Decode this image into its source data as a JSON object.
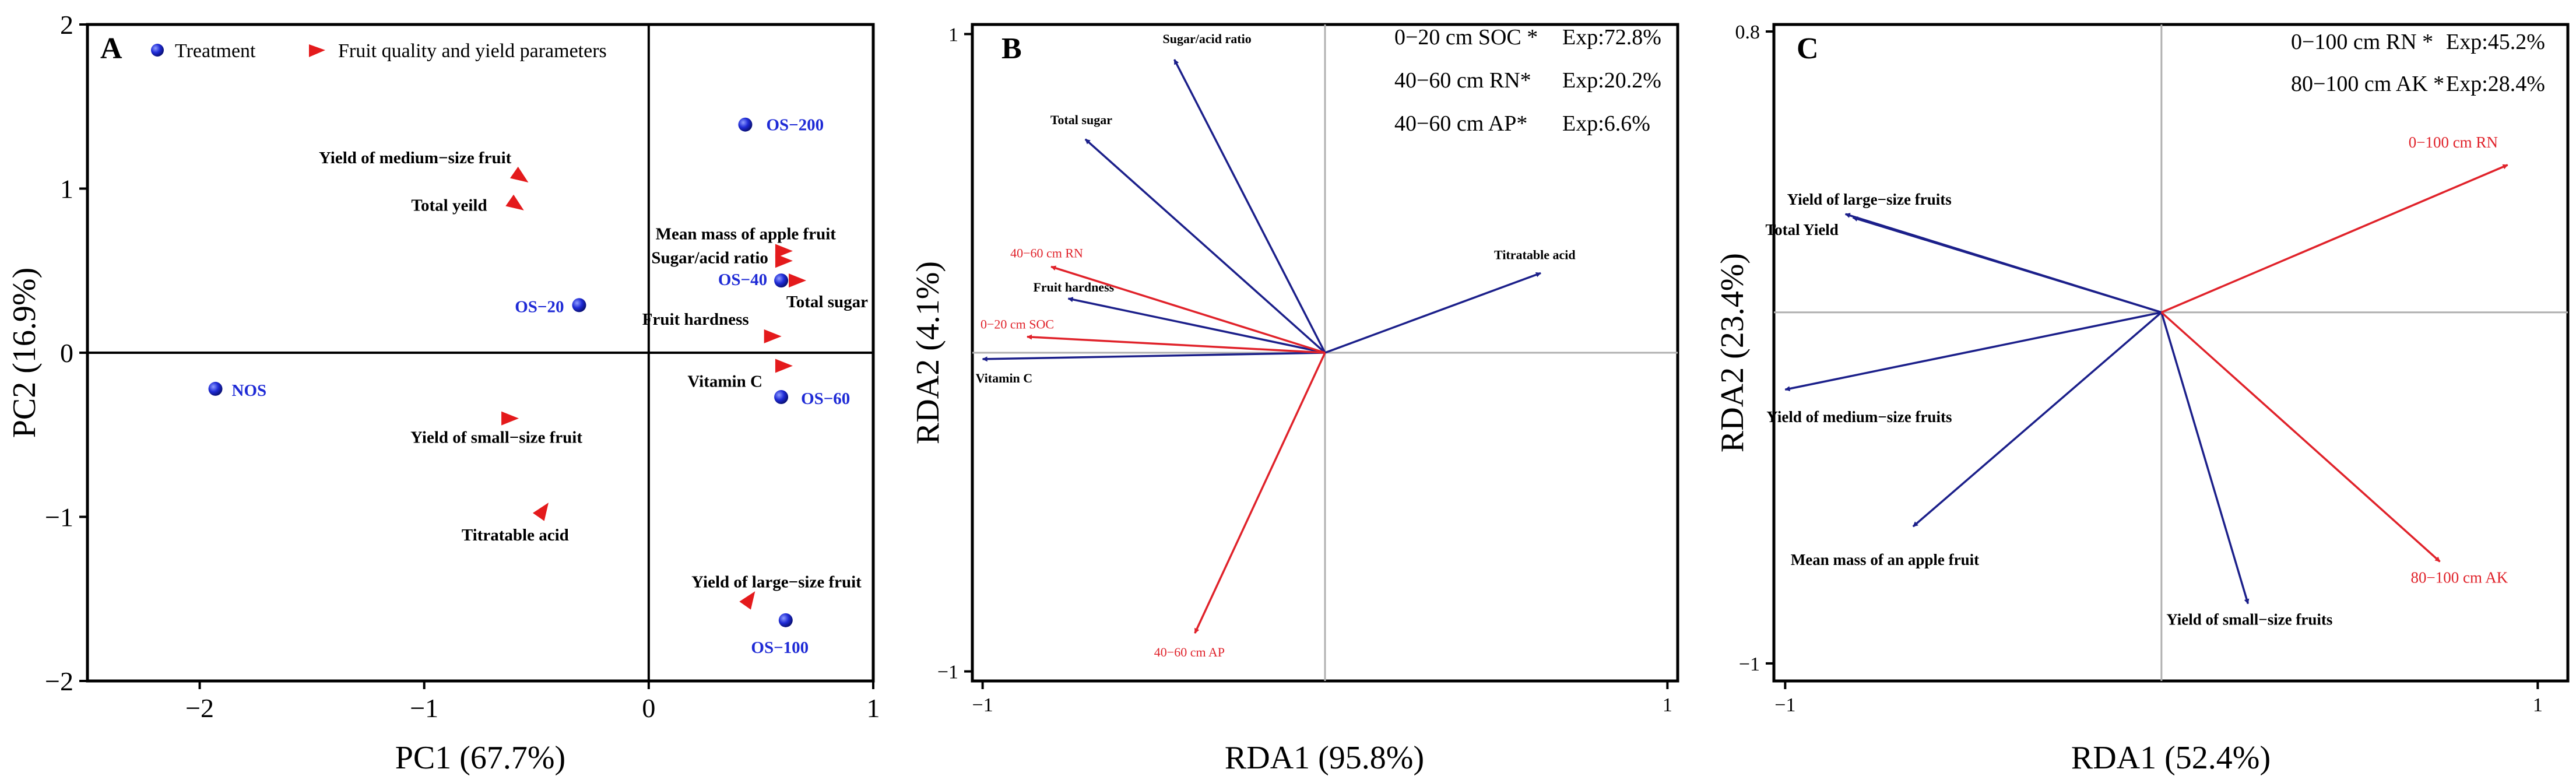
{
  "colors": {
    "treatment": "#1f2bd6",
    "fruit_param": "#e41a1c",
    "env_arrow": "#e0222a",
    "response_arrow": "#1b1f8a"
  },
  "chart_data": [
    {
      "panel": "A",
      "type": "scatter",
      "xlabel": "PC1 (67.7%)",
      "ylabel": "PC2 (16.9%)",
      "xlim": [
        -2.5,
        1
      ],
      "ylim": [
        -2,
        2
      ],
      "xticks": [
        -2,
        -1,
        0,
        1
      ],
      "yticks": [
        -2,
        -1,
        0,
        1,
        2
      ],
      "legend": [
        {
          "label": "Treatment",
          "marker": "circle"
        },
        {
          "label": "Fruit quality and yield parameters",
          "marker": "flag"
        }
      ],
      "treatments": [
        {
          "label": "NOS",
          "x": -1.93,
          "y": -0.22
        },
        {
          "label": "OS−20",
          "x": -0.31,
          "y": 0.29
        },
        {
          "label": "OS−40",
          "x": 0.59,
          "y": 0.44
        },
        {
          "label": "OS−60",
          "x": 0.59,
          "y": -0.27
        },
        {
          "label": "OS−100",
          "x": 0.61,
          "y": -1.63
        },
        {
          "label": "OS−200",
          "x": 0.43,
          "y": 1.39
        }
      ],
      "parameters": [
        {
          "label": "Yield of medium−size fruit",
          "x": -0.57,
          "y": 1.07
        },
        {
          "label": "Total yeild",
          "x": -0.59,
          "y": 0.9
        },
        {
          "label": "Mean mass of apple fruit",
          "x": 0.6,
          "y": 0.62
        },
        {
          "label": "Sugar/acid ratio",
          "x": 0.6,
          "y": 0.56
        },
        {
          "label": "Total sugar",
          "x": 0.66,
          "y": 0.44
        },
        {
          "label": "Fruit hardness",
          "x": 0.55,
          "y": 0.1
        },
        {
          "label": "Vitamin C",
          "x": 0.6,
          "y": -0.08
        },
        {
          "label": "Yield of small−size fruit",
          "x": -0.62,
          "y": -0.4
        },
        {
          "label": "Titratable acid",
          "x": -0.47,
          "y": -0.96
        },
        {
          "label": "Yield of large−size fruit",
          "x": 0.45,
          "y": -1.5
        }
      ]
    },
    {
      "panel": "B",
      "type": "scatter",
      "xlabel": "RDA1 (95.8%)",
      "ylabel": "RDA2 (4.1%)",
      "xlim": [
        -1.03,
        1.03
      ],
      "ylim": [
        -1.03,
        1.03
      ],
      "xticks": [
        -1,
        1
      ],
      "yticks": [
        -1,
        1
      ],
      "explained": [
        {
          "variable": "0−20 cm SOC *",
          "exp": "Exp:72.8%"
        },
        {
          "variable": "40−60 cm RN*",
          "exp": "Exp:20.2%"
        },
        {
          "variable": "40−60 cm AP*",
          "exp": "Exp:6.6%"
        }
      ],
      "response_arrows": [
        {
          "label": "Sugar/acid ratio",
          "x": -0.44,
          "y": 0.92
        },
        {
          "label": "Total sugar",
          "x": -0.7,
          "y": 0.67
        },
        {
          "label": "Fruit hardness",
          "x": -0.75,
          "y": 0.17
        },
        {
          "label": "Vitamin C",
          "x": -1.0,
          "y": -0.02
        },
        {
          "label": "Titratable acid",
          "x": 0.63,
          "y": 0.25
        }
      ],
      "env_arrows": [
        {
          "label": "40−60 cm RN",
          "x": -0.8,
          "y": 0.27
        },
        {
          "label": "0−20 cm SOC",
          "x": -0.87,
          "y": 0.05
        },
        {
          "label": "40−60 cm AP",
          "x": -0.38,
          "y": -0.88
        }
      ]
    },
    {
      "panel": "C",
      "type": "scatter",
      "xlabel": "RDA1 (52.4%)",
      "ylabel": "RDA2 (23.4%)",
      "xlim": [
        -1.03,
        1.08
      ],
      "ylim": [
        -1.05,
        0.82
      ],
      "xticks": [
        -1,
        1
      ],
      "yticks": [
        -1,
        0.8
      ],
      "explained": [
        {
          "variable": "0−100 cm RN *",
          "exp": "Exp:45.2%"
        },
        {
          "variable": "80−100 cm AK * ",
          "exp": "Exp:28.4%"
        }
      ],
      "response_arrows": [
        {
          "label": "Yield of large−size fruits",
          "x": -0.84,
          "y": 0.28
        },
        {
          "label": "Total Yield",
          "x": -0.82,
          "y": 0.27
        },
        {
          "label": "Yield of medium−size fruits",
          "x": -1.0,
          "y": -0.22
        },
        {
          "label": "Mean mass of an apple fruit",
          "x": -0.66,
          "y": -0.61
        },
        {
          "label": "Yield of small−size fruits",
          "x": 0.23,
          "y": -0.83
        }
      ],
      "env_arrows": [
        {
          "label": "0−100 cm RN",
          "x": 0.92,
          "y": 0.42
        },
        {
          "label": "80−100 cm AK",
          "x": 0.74,
          "y": -0.71
        }
      ]
    }
  ]
}
